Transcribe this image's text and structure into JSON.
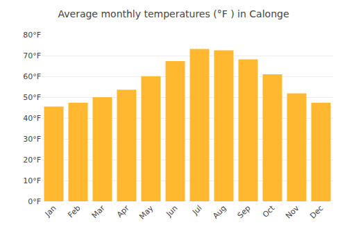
{
  "chart_data": {
    "type": "bar",
    "title": "Average monthly temperatures (°F ) in Calonge",
    "categories": [
      "Jan",
      "Feb",
      "Mar",
      "Apr",
      "May",
      "Jun",
      "Jul",
      "Aug",
      "Sep",
      "Oct",
      "Nov",
      "Dec"
    ],
    "values": [
      45.5,
      47.3,
      50.0,
      53.6,
      60.1,
      67.3,
      73.2,
      72.5,
      68.2,
      61.0,
      51.8,
      47.3
    ],
    "color": "#FFB830",
    "ylim": [
      0,
      80
    ],
    "yticks": [
      {
        "value": 0,
        "label": "0°F"
      },
      {
        "value": 10,
        "label": "10°F"
      },
      {
        "value": 20,
        "label": "20°F"
      },
      {
        "value": 30,
        "label": "30°F"
      },
      {
        "value": 40,
        "label": "40°F"
      },
      {
        "value": 50,
        "label": "50°F"
      },
      {
        "value": 60,
        "label": "60°F"
      },
      {
        "value": 70,
        "label": "70°F"
      },
      {
        "value": 80,
        "label": "80°F"
      }
    ],
    "grid": true
  }
}
